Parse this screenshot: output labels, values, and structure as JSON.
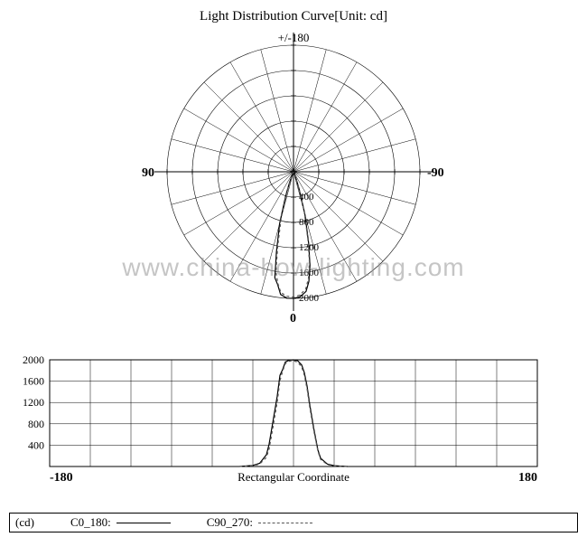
{
  "title": "Light Distribution Curve[Unit: cd]",
  "watermark": "www.china-how-lighting.com",
  "polar": {
    "type": "polar",
    "top_label": "+/-180",
    "left_label": "90",
    "right_label": "-90",
    "bottom_label": "0",
    "radial_ticks": [
      400,
      800,
      1200,
      1600,
      2000
    ],
    "max_value": 2000,
    "ring_count": 5,
    "spoke_count": 24,
    "stroke_color": "#000000",
    "background_color": "#ffffff",
    "series": [
      {
        "name": "C0_180",
        "color": "#000000",
        "dash": "",
        "points_deg_cd": [
          [
            -25,
            50
          ],
          [
            -20,
            200
          ],
          [
            -18,
            400
          ],
          [
            -15,
            850
          ],
          [
            -12,
            1300
          ],
          [
            -10,
            1700
          ],
          [
            -8,
            1800
          ],
          [
            -6,
            1950
          ],
          [
            -3,
            2000
          ],
          [
            0,
            2000
          ],
          [
            3,
            1980
          ],
          [
            6,
            1900
          ],
          [
            8,
            1750
          ],
          [
            10,
            1500
          ],
          [
            12,
            1150
          ],
          [
            15,
            700
          ],
          [
            18,
            300
          ],
          [
            20,
            150
          ],
          [
            25,
            40
          ]
        ]
      },
      {
        "name": "C90_270",
        "color": "#555555",
        "dash": "3 3",
        "points_deg_cd": [
          [
            -25,
            40
          ],
          [
            -20,
            160
          ],
          [
            -18,
            320
          ],
          [
            -15,
            750
          ],
          [
            -12,
            1200
          ],
          [
            -10,
            1600
          ],
          [
            -8,
            1780
          ],
          [
            -6,
            1920
          ],
          [
            -3,
            1970
          ],
          [
            0,
            1980
          ],
          [
            3,
            1950
          ],
          [
            6,
            1860
          ],
          [
            8,
            1700
          ],
          [
            10,
            1450
          ],
          [
            12,
            1100
          ],
          [
            15,
            660
          ],
          [
            18,
            280
          ],
          [
            20,
            130
          ],
          [
            25,
            30
          ]
        ]
      }
    ]
  },
  "rect": {
    "type": "line",
    "xlim": [
      -180,
      180
    ],
    "ylim": [
      0,
      2000
    ],
    "yticks": [
      400,
      800,
      1200,
      1600,
      2000
    ],
    "x_left_label": "-180",
    "x_right_label": "180",
    "subtitle": "Rectangular Coordinate",
    "stroke_color": "#000000",
    "background_color": "#ffffff",
    "grid_cols": 12,
    "series": [
      {
        "name": "C0_180",
        "color": "#000000",
        "dash": "",
        "points_deg_cd": [
          [
            -40,
            0
          ],
          [
            -30,
            20
          ],
          [
            -25,
            60
          ],
          [
            -20,
            220
          ],
          [
            -18,
            420
          ],
          [
            -15,
            870
          ],
          [
            -12,
            1320
          ],
          [
            -10,
            1710
          ],
          [
            -8,
            1820
          ],
          [
            -6,
            1960
          ],
          [
            -3,
            1995
          ],
          [
            0,
            2000
          ],
          [
            3,
            1985
          ],
          [
            6,
            1905
          ],
          [
            8,
            1760
          ],
          [
            10,
            1510
          ],
          [
            12,
            1160
          ],
          [
            15,
            710
          ],
          [
            18,
            310
          ],
          [
            20,
            155
          ],
          [
            25,
            45
          ],
          [
            30,
            15
          ],
          [
            40,
            0
          ]
        ]
      },
      {
        "name": "C90_270",
        "color": "#555555",
        "dash": "3 3",
        "points_deg_cd": [
          [
            -40,
            0
          ],
          [
            -30,
            15
          ],
          [
            -25,
            45
          ],
          [
            -20,
            170
          ],
          [
            -18,
            330
          ],
          [
            -15,
            760
          ],
          [
            -12,
            1210
          ],
          [
            -10,
            1610
          ],
          [
            -8,
            1790
          ],
          [
            -6,
            1930
          ],
          [
            -3,
            1975
          ],
          [
            0,
            1985
          ],
          [
            3,
            1955
          ],
          [
            6,
            1870
          ],
          [
            8,
            1710
          ],
          [
            10,
            1460
          ],
          [
            12,
            1110
          ],
          [
            15,
            670
          ],
          [
            18,
            290
          ],
          [
            20,
            135
          ],
          [
            25,
            35
          ],
          [
            30,
            10
          ],
          [
            40,
            0
          ]
        ]
      }
    ]
  },
  "legend": {
    "unit": "(cd)",
    "items": [
      {
        "label": "C0_180:",
        "dash": ""
      },
      {
        "label": "C90_270:",
        "dash": "dashed"
      }
    ]
  }
}
